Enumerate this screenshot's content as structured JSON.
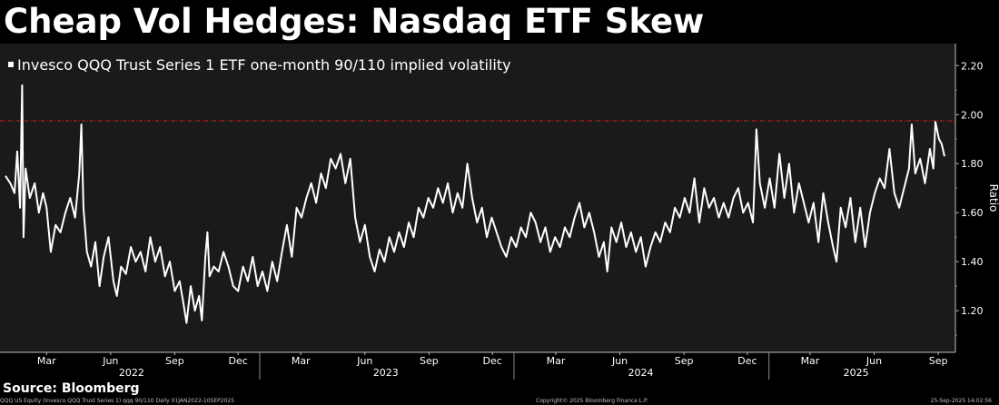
{
  "title": "Cheap Vol Hedges: Nasdaq ETF Skew",
  "source": "Source: Bloomberg",
  "footer": {
    "left": "QQQ US Equity (Invesco QQQ Trust Series 1) qqq 90/110  Daily 01JAN2022-10SEP2025",
    "center": "Copyright© 2025 Bloomberg Finance L.P.",
    "right": "25-Sep-2025 14:02:56"
  },
  "colors": {
    "background": "#000000",
    "plot_bg": "#1a1a1a",
    "line": "#ffffff",
    "ref_line": "#e0201c",
    "text": "#ffffff"
  },
  "chart_data": {
    "type": "line",
    "title": "Cheap Vol Hedges: Nasdaq ETF Skew",
    "legend": "Invesco QQQ Trust Series 1 ETF one-month 90/110 implied volatility",
    "ylabel": "Ratio",
    "ylim": [
      1.03,
      2.29
    ],
    "yticks": [
      "1.20",
      "1.40",
      "1.60",
      "1.80",
      "2.00",
      "2.20"
    ],
    "reference_line": 1.975,
    "xrange": [
      "2022-01-01",
      "2025-09-10"
    ],
    "month_ticks": [
      {
        "label": "Mar",
        "date": "2022-03-01"
      },
      {
        "label": "Jun",
        "date": "2022-06-01"
      },
      {
        "label": "Sep",
        "date": "2022-09-01"
      },
      {
        "label": "Dec",
        "date": "2022-12-01"
      },
      {
        "label": "Mar",
        "date": "2023-03-01"
      },
      {
        "label": "Jun",
        "date": "2023-06-01"
      },
      {
        "label": "Sep",
        "date": "2023-09-01"
      },
      {
        "label": "Dec",
        "date": "2023-12-01"
      },
      {
        "label": "Mar",
        "date": "2024-03-01"
      },
      {
        "label": "Jun",
        "date": "2024-06-01"
      },
      {
        "label": "Sep",
        "date": "2024-09-01"
      },
      {
        "label": "Dec",
        "date": "2024-12-01"
      },
      {
        "label": "Mar",
        "date": "2025-03-01"
      },
      {
        "label": "Jun",
        "date": "2025-06-01"
      },
      {
        "label": "Sep",
        "date": "2025-09-01"
      }
    ],
    "year_labels": [
      {
        "label": "2022",
        "date": "2022-07-01"
      },
      {
        "label": "2023",
        "date": "2023-07-01"
      },
      {
        "label": "2024",
        "date": "2024-07-01"
      },
      {
        "label": "2025",
        "date": "2025-05-06"
      }
    ],
    "year_separators": [
      "2023-01-01",
      "2024-01-01",
      "2025-01-01"
    ],
    "series": [
      {
        "name": "Invesco QQQ Trust Series 1 ETF one-month 90/110 implied volatility",
        "points": [
          [
            "2022-01-01",
            1.75
          ],
          [
            "2022-01-08",
            1.72
          ],
          [
            "2022-01-14",
            1.68
          ],
          [
            "2022-01-18",
            1.85
          ],
          [
            "2022-01-22",
            1.62
          ],
          [
            "2022-01-25",
            2.12
          ],
          [
            "2022-01-27",
            1.5
          ],
          [
            "2022-01-30",
            1.78
          ],
          [
            "2022-02-05",
            1.66
          ],
          [
            "2022-02-12",
            1.72
          ],
          [
            "2022-02-18",
            1.6
          ],
          [
            "2022-02-24",
            1.68
          ],
          [
            "2022-03-01",
            1.62
          ],
          [
            "2022-03-07",
            1.44
          ],
          [
            "2022-03-14",
            1.55
          ],
          [
            "2022-03-21",
            1.52
          ],
          [
            "2022-03-28",
            1.6
          ],
          [
            "2022-04-04",
            1.66
          ],
          [
            "2022-04-11",
            1.58
          ],
          [
            "2022-04-17",
            1.76
          ],
          [
            "2022-04-20",
            1.96
          ],
          [
            "2022-04-23",
            1.62
          ],
          [
            "2022-04-28",
            1.44
          ],
          [
            "2022-05-04",
            1.38
          ],
          [
            "2022-05-10",
            1.48
          ],
          [
            "2022-05-16",
            1.3
          ],
          [
            "2022-05-22",
            1.42
          ],
          [
            "2022-05-29",
            1.5
          ],
          [
            "2022-06-05",
            1.32
          ],
          [
            "2022-06-10",
            1.26
          ],
          [
            "2022-06-16",
            1.38
          ],
          [
            "2022-06-23",
            1.35
          ],
          [
            "2022-06-30",
            1.46
          ],
          [
            "2022-07-07",
            1.4
          ],
          [
            "2022-07-14",
            1.44
          ],
          [
            "2022-07-21",
            1.36
          ],
          [
            "2022-07-28",
            1.5
          ],
          [
            "2022-08-04",
            1.4
          ],
          [
            "2022-08-11",
            1.46
          ],
          [
            "2022-08-18",
            1.34
          ],
          [
            "2022-08-25",
            1.4
          ],
          [
            "2022-09-01",
            1.28
          ],
          [
            "2022-09-08",
            1.32
          ],
          [
            "2022-09-14",
            1.22
          ],
          [
            "2022-09-18",
            1.15
          ],
          [
            "2022-09-24",
            1.3
          ],
          [
            "2022-09-30",
            1.2
          ],
          [
            "2022-10-06",
            1.26
          ],
          [
            "2022-10-10",
            1.16
          ],
          [
            "2022-10-15",
            1.42
          ],
          [
            "2022-10-18",
            1.52
          ],
          [
            "2022-10-21",
            1.34
          ],
          [
            "2022-10-27",
            1.38
          ],
          [
            "2022-11-03",
            1.36
          ],
          [
            "2022-11-10",
            1.44
          ],
          [
            "2022-11-17",
            1.38
          ],
          [
            "2022-11-24",
            1.3
          ],
          [
            "2022-12-01",
            1.28
          ],
          [
            "2022-12-08",
            1.38
          ],
          [
            "2022-12-15",
            1.32
          ],
          [
            "2022-12-22",
            1.42
          ],
          [
            "2022-12-29",
            1.3
          ],
          [
            "2023-01-05",
            1.36
          ],
          [
            "2023-01-12",
            1.28
          ],
          [
            "2023-01-19",
            1.4
          ],
          [
            "2023-01-26",
            1.32
          ],
          [
            "2023-02-02",
            1.44
          ],
          [
            "2023-02-09",
            1.55
          ],
          [
            "2023-02-16",
            1.42
          ],
          [
            "2023-02-23",
            1.62
          ],
          [
            "2023-03-02",
            1.58
          ],
          [
            "2023-03-09",
            1.66
          ],
          [
            "2023-03-16",
            1.72
          ],
          [
            "2023-03-23",
            1.64
          ],
          [
            "2023-03-30",
            1.76
          ],
          [
            "2023-04-06",
            1.7
          ],
          [
            "2023-04-13",
            1.82
          ],
          [
            "2023-04-20",
            1.78
          ],
          [
            "2023-04-27",
            1.84
          ],
          [
            "2023-05-04",
            1.72
          ],
          [
            "2023-05-11",
            1.82
          ],
          [
            "2023-05-18",
            1.58
          ],
          [
            "2023-05-25",
            1.48
          ],
          [
            "2023-06-01",
            1.55
          ],
          [
            "2023-06-08",
            1.42
          ],
          [
            "2023-06-15",
            1.36
          ],
          [
            "2023-06-22",
            1.45
          ],
          [
            "2023-06-29",
            1.4
          ],
          [
            "2023-07-06",
            1.5
          ],
          [
            "2023-07-13",
            1.44
          ],
          [
            "2023-07-20",
            1.52
          ],
          [
            "2023-07-27",
            1.46
          ],
          [
            "2023-08-03",
            1.56
          ],
          [
            "2023-08-10",
            1.5
          ],
          [
            "2023-08-17",
            1.62
          ],
          [
            "2023-08-24",
            1.58
          ],
          [
            "2023-08-31",
            1.66
          ],
          [
            "2023-09-07",
            1.62
          ],
          [
            "2023-09-14",
            1.7
          ],
          [
            "2023-09-21",
            1.64
          ],
          [
            "2023-09-28",
            1.72
          ],
          [
            "2023-10-05",
            1.6
          ],
          [
            "2023-10-12",
            1.68
          ],
          [
            "2023-10-19",
            1.62
          ],
          [
            "2023-10-26",
            1.8
          ],
          [
            "2023-11-02",
            1.66
          ],
          [
            "2023-11-09",
            1.56
          ],
          [
            "2023-11-16",
            1.62
          ],
          [
            "2023-11-23",
            1.5
          ],
          [
            "2023-11-30",
            1.58
          ],
          [
            "2023-12-07",
            1.52
          ],
          [
            "2023-12-14",
            1.46
          ],
          [
            "2023-12-21",
            1.42
          ],
          [
            "2023-12-28",
            1.5
          ],
          [
            "2024-01-04",
            1.46
          ],
          [
            "2024-01-11",
            1.54
          ],
          [
            "2024-01-18",
            1.5
          ],
          [
            "2024-01-25",
            1.6
          ],
          [
            "2024-02-01",
            1.56
          ],
          [
            "2024-02-08",
            1.48
          ],
          [
            "2024-02-15",
            1.54
          ],
          [
            "2024-02-22",
            1.44
          ],
          [
            "2024-02-29",
            1.5
          ],
          [
            "2024-03-07",
            1.46
          ],
          [
            "2024-03-14",
            1.54
          ],
          [
            "2024-03-21",
            1.5
          ],
          [
            "2024-03-28",
            1.58
          ],
          [
            "2024-04-04",
            1.64
          ],
          [
            "2024-04-11",
            1.54
          ],
          [
            "2024-04-18",
            1.6
          ],
          [
            "2024-04-25",
            1.52
          ],
          [
            "2024-05-02",
            1.42
          ],
          [
            "2024-05-09",
            1.48
          ],
          [
            "2024-05-14",
            1.36
          ],
          [
            "2024-05-20",
            1.54
          ],
          [
            "2024-05-27",
            1.48
          ],
          [
            "2024-06-03",
            1.56
          ],
          [
            "2024-06-10",
            1.46
          ],
          [
            "2024-06-17",
            1.52
          ],
          [
            "2024-06-24",
            1.44
          ],
          [
            "2024-07-01",
            1.5
          ],
          [
            "2024-07-08",
            1.38
          ],
          [
            "2024-07-15",
            1.46
          ],
          [
            "2024-07-22",
            1.52
          ],
          [
            "2024-07-29",
            1.48
          ],
          [
            "2024-08-05",
            1.56
          ],
          [
            "2024-08-12",
            1.52
          ],
          [
            "2024-08-19",
            1.62
          ],
          [
            "2024-08-26",
            1.58
          ],
          [
            "2024-09-02",
            1.66
          ],
          [
            "2024-09-09",
            1.6
          ],
          [
            "2024-09-16",
            1.74
          ],
          [
            "2024-09-23",
            1.56
          ],
          [
            "2024-09-30",
            1.7
          ],
          [
            "2024-10-07",
            1.62
          ],
          [
            "2024-10-14",
            1.66
          ],
          [
            "2024-10-21",
            1.58
          ],
          [
            "2024-10-28",
            1.64
          ],
          [
            "2024-11-04",
            1.58
          ],
          [
            "2024-11-11",
            1.66
          ],
          [
            "2024-11-18",
            1.7
          ],
          [
            "2024-11-25",
            1.6
          ],
          [
            "2024-12-02",
            1.64
          ],
          [
            "2024-12-09",
            1.56
          ],
          [
            "2024-12-14",
            1.94
          ],
          [
            "2024-12-19",
            1.72
          ],
          [
            "2024-12-26",
            1.62
          ],
          [
            "2025-01-02",
            1.74
          ],
          [
            "2025-01-09",
            1.62
          ],
          [
            "2025-01-16",
            1.84
          ],
          [
            "2025-01-23",
            1.66
          ],
          [
            "2025-01-30",
            1.8
          ],
          [
            "2025-02-06",
            1.6
          ],
          [
            "2025-02-13",
            1.72
          ],
          [
            "2025-02-20",
            1.64
          ],
          [
            "2025-02-27",
            1.56
          ],
          [
            "2025-03-06",
            1.64
          ],
          [
            "2025-03-13",
            1.48
          ],
          [
            "2025-03-20",
            1.68
          ],
          [
            "2025-03-27",
            1.56
          ],
          [
            "2025-04-03",
            1.46
          ],
          [
            "2025-04-08",
            1.4
          ],
          [
            "2025-04-14",
            1.62
          ],
          [
            "2025-04-21",
            1.54
          ],
          [
            "2025-04-28",
            1.66
          ],
          [
            "2025-05-05",
            1.48
          ],
          [
            "2025-05-12",
            1.62
          ],
          [
            "2025-05-19",
            1.46
          ],
          [
            "2025-05-26",
            1.6
          ],
          [
            "2025-06-02",
            1.68
          ],
          [
            "2025-06-09",
            1.74
          ],
          [
            "2025-06-16",
            1.7
          ],
          [
            "2025-06-23",
            1.86
          ],
          [
            "2025-06-30",
            1.68
          ],
          [
            "2025-07-07",
            1.62
          ],
          [
            "2025-07-14",
            1.7
          ],
          [
            "2025-07-21",
            1.78
          ],
          [
            "2025-07-25",
            1.96
          ],
          [
            "2025-07-30",
            1.76
          ],
          [
            "2025-08-06",
            1.82
          ],
          [
            "2025-08-13",
            1.72
          ],
          [
            "2025-08-20",
            1.86
          ],
          [
            "2025-08-25",
            1.78
          ],
          [
            "2025-08-28",
            1.97
          ],
          [
            "2025-09-02",
            1.9
          ],
          [
            "2025-09-06",
            1.88
          ],
          [
            "2025-09-10",
            1.83
          ]
        ]
      }
    ]
  }
}
